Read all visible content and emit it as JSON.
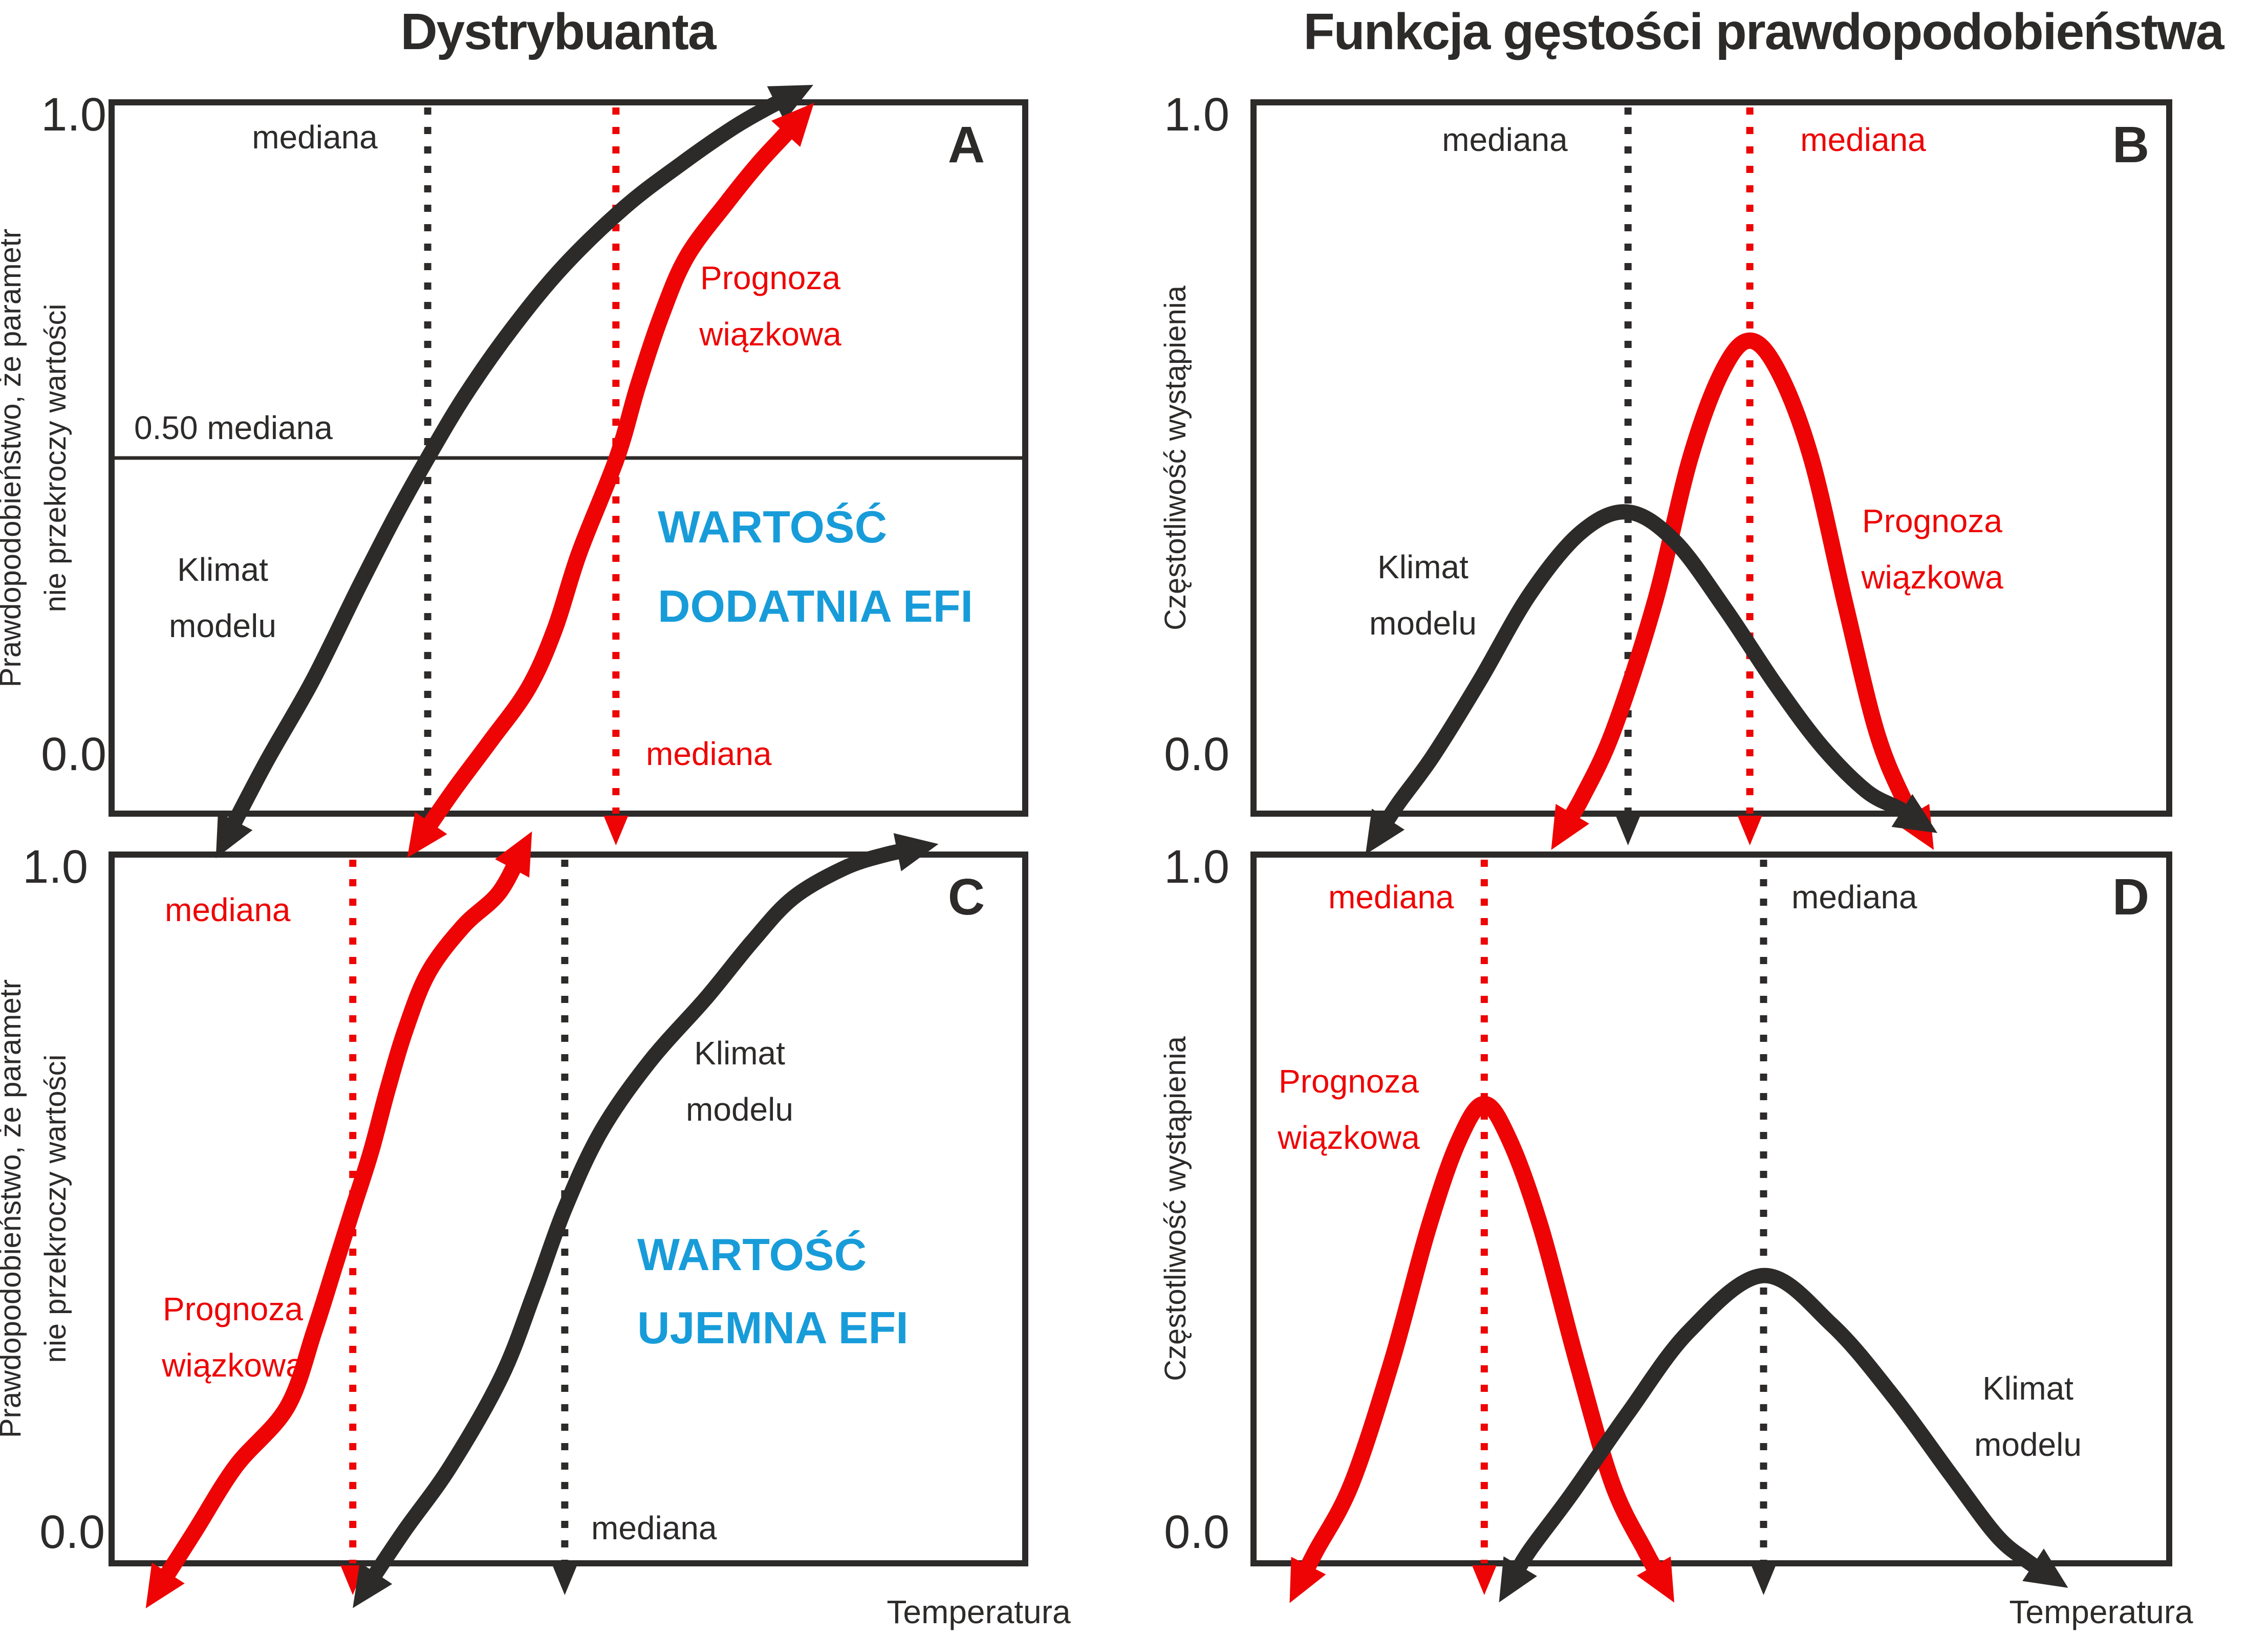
{
  "titles": {
    "left": "Dystrybuanta",
    "right": "Funkcja gęstości prawdopodobieństwa"
  },
  "colors": {
    "ink": "#2d2b2a",
    "red": "#ee0404",
    "blue": "#189cd9"
  },
  "axes": {
    "tick_top": "1.0",
    "tick_bottom": "0.0",
    "prob_line1": "Prawdopodobieństwo, że parametr",
    "prob_line2": "nie przekroczy wartości",
    "freq": "Częstotliwość wystąpienia",
    "temperature": "Temperatura"
  },
  "labels": {
    "median": "mediana",
    "half_median": "0.50 mediana",
    "climate_1": "Klimat",
    "climate_2": "modelu",
    "forecast_1": "Prognoza",
    "forecast_2": "wiązkowa",
    "efi_pos_1": "WARTOŚĆ",
    "efi_pos_2": "DODATNIA EFI",
    "efi_neg_1": "WARTOŚĆ",
    "efi_neg_2": "UJEMNA EFI"
  },
  "panels": {
    "a": {
      "letter": "A"
    },
    "b": {
      "letter": "B"
    },
    "c": {
      "letter": "C"
    },
    "d": {
      "letter": "D"
    }
  },
  "chart_data": [
    {
      "panel": "A",
      "type": "line",
      "title": "Dystrybuanta",
      "xlabel": "Temperatura",
      "ylabel": "Prawdopodobieństwo, że parametr nie przekroczy wartości",
      "ylim": [
        0,
        1
      ],
      "grid": false,
      "half_line": 0.5,
      "annotation": "WARTOŚĆ DODATNIA EFI",
      "series": [
        {
          "name": "Klimat modelu",
          "color": "ink",
          "median_x": 0.346,
          "points": [
            [
              0.125,
              -0.036
            ],
            [
              0.169,
              0.072
            ],
            [
              0.22,
              0.187
            ],
            [
              0.27,
              0.317
            ],
            [
              0.31,
              0.417
            ],
            [
              0.346,
              0.5
            ],
            [
              0.388,
              0.59
            ],
            [
              0.439,
              0.683
            ],
            [
              0.495,
              0.77
            ],
            [
              0.562,
              0.853
            ],
            [
              0.624,
              0.914
            ],
            [
              0.68,
              0.964
            ],
            [
              0.719,
              0.993
            ],
            [
              0.747,
              1.011
            ]
          ]
        },
        {
          "name": "Prognoza wiązkowa",
          "color": "red",
          "median_x": 0.552,
          "points": [
            [
              0.337,
              -0.037
            ],
            [
              0.374,
              0.032
            ],
            [
              0.414,
              0.101
            ],
            [
              0.456,
              0.176
            ],
            [
              0.485,
              0.259
            ],
            [
              0.512,
              0.367
            ],
            [
              0.553,
              0.5
            ],
            [
              0.576,
              0.601
            ],
            [
              0.602,
              0.701
            ],
            [
              0.63,
              0.784
            ],
            [
              0.674,
              0.86
            ],
            [
              0.708,
              0.914
            ],
            [
              0.736,
              0.953
            ],
            [
              0.753,
              0.977
            ]
          ]
        }
      ]
    },
    {
      "panel": "B",
      "type": "line",
      "title": "Funkcja gęstości prawdopodobieństwa",
      "xlabel": "Temperatura",
      "ylabel": "Częstotliwość wystąpienia",
      "ylim": [
        0,
        1
      ],
      "grid": false,
      "half_line": null,
      "annotation": "",
      "series": [
        {
          "name": "Prognoza wiązkowa",
          "color": "red",
          "median_x": 0.542,
          "points": [
            [
              0.337,
              -0.025
            ],
            [
              0.359,
              0.023
            ],
            [
              0.393,
              0.117
            ],
            [
              0.438,
              0.296
            ],
            [
              0.477,
              0.5
            ],
            [
              0.512,
              0.622
            ],
            [
              0.542,
              0.665
            ],
            [
              0.573,
              0.622
            ],
            [
              0.609,
              0.5
            ],
            [
              0.646,
              0.296
            ],
            [
              0.68,
              0.117
            ],
            [
              0.709,
              0.023
            ],
            [
              0.731,
              -0.025
            ]
          ]
        },
        {
          "name": "Klimat modelu",
          "color": "ink",
          "median_x": 0.409,
          "points": [
            [
              0.135,
              -0.032
            ],
            [
              0.158,
              0.014
            ],
            [
              0.196,
              0.081
            ],
            [
              0.247,
              0.187
            ],
            [
              0.302,
              0.309
            ],
            [
              0.358,
              0.396
            ],
            [
              0.409,
              0.424
            ],
            [
              0.46,
              0.383
            ],
            [
              0.515,
              0.288
            ],
            [
              0.571,
              0.18
            ],
            [
              0.621,
              0.094
            ],
            [
              0.669,
              0.032
            ],
            [
              0.705,
              0.007
            ],
            [
              0.727,
              -0.011
            ]
          ]
        }
      ]
    },
    {
      "panel": "C",
      "type": "line",
      "title": "Dystrybuanta",
      "xlabel": "Temperatura",
      "ylabel": "Prawdopodobieństwo, że parametr nie przekroczy wartości",
      "ylim": [
        0,
        1
      ],
      "grid": false,
      "half_line": null,
      "annotation": "WARTOŚĆ UJEMNA EFI",
      "series": [
        {
          "name": "Klimat modelu",
          "color": "ink",
          "median_x": 0.496,
          "points": [
            [
              0.277,
              -0.038
            ],
            [
              0.32,
              0.045
            ],
            [
              0.371,
              0.137
            ],
            [
              0.427,
              0.264
            ],
            [
              0.463,
              0.383
            ],
            [
              0.496,
              0.5
            ],
            [
              0.536,
              0.61
            ],
            [
              0.589,
              0.708
            ],
            [
              0.651,
              0.798
            ],
            [
              0.701,
              0.877
            ],
            [
              0.746,
              0.939
            ],
            [
              0.802,
              0.981
            ],
            [
              0.847,
              1.0
            ],
            [
              0.882,
              1.009
            ]
          ]
        },
        {
          "name": "Prognoza wiązkowa",
          "color": "red",
          "median_x": 0.264,
          "points": [
            [
              0.05,
              -0.038
            ],
            [
              0.091,
              0.045
            ],
            [
              0.136,
              0.137
            ],
            [
              0.192,
              0.22
            ],
            [
              0.222,
              0.328
            ],
            [
              0.245,
              0.422
            ],
            [
              0.264,
              0.5
            ],
            [
              0.284,
              0.581
            ],
            [
              0.302,
              0.668
            ],
            [
              0.322,
              0.754
            ],
            [
              0.347,
              0.834
            ],
            [
              0.385,
              0.899
            ],
            [
              0.424,
              0.946
            ],
            [
              0.449,
              1.006
            ]
          ]
        }
      ]
    },
    {
      "panel": "D",
      "type": "line",
      "title": "Funkcja gęstości prawdopodobieństwa",
      "xlabel": "Temperatura",
      "ylabel": "Częstotliwość wystąpienia",
      "ylim": [
        0,
        1
      ],
      "grid": false,
      "half_line": null,
      "annotation": "",
      "series": [
        {
          "name": "Prognoza wiązkowa",
          "color": "red",
          "median_x": 0.252,
          "points": [
            [
              0.05,
              -0.029
            ],
            [
              0.068,
              0.017
            ],
            [
              0.107,
              0.112
            ],
            [
              0.151,
              0.285
            ],
            [
              0.191,
              0.473
            ],
            [
              0.224,
              0.596
            ],
            [
              0.252,
              0.648
            ],
            [
              0.28,
              0.596
            ],
            [
              0.314,
              0.473
            ],
            [
              0.353,
              0.285
            ],
            [
              0.392,
              0.112
            ],
            [
              0.428,
              0.017
            ],
            [
              0.448,
              -0.029
            ]
          ]
        },
        {
          "name": "Klimat modelu",
          "color": "ink",
          "median_x": 0.557,
          "points": [
            [
              0.28,
              -0.029
            ],
            [
              0.301,
              0.017
            ],
            [
              0.347,
              0.097
            ],
            [
              0.409,
              0.212
            ],
            [
              0.476,
              0.328
            ],
            [
              0.557,
              0.406
            ],
            [
              0.632,
              0.336
            ],
            [
              0.699,
              0.235
            ],
            [
              0.761,
              0.126
            ],
            [
              0.811,
              0.04
            ],
            [
              0.843,
              0.005
            ],
            [
              0.87,
              -0.018
            ]
          ]
        }
      ]
    }
  ]
}
